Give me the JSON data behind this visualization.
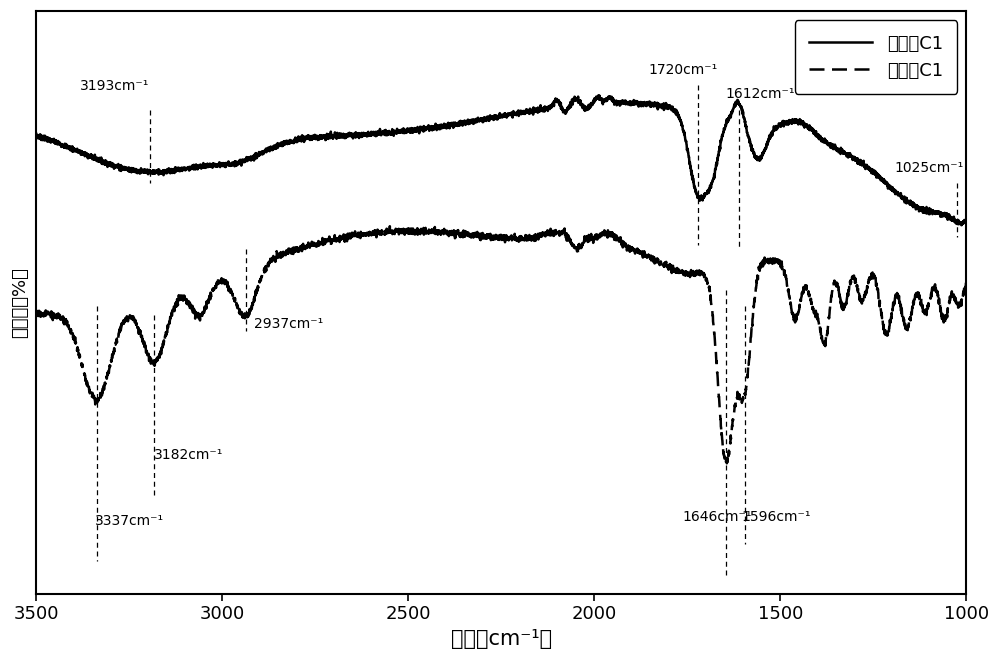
{
  "title": "",
  "xlabel": "波数（cm⁻¹）",
  "ylabel": "透过率（%）",
  "xlim": [
    3500,
    1000
  ],
  "legend_solid": "改性前C1",
  "legend_dashed": "改性后C1",
  "background_color": "#ffffff",
  "annotation_labels": [
    "3193cm⁻¹",
    "3337cm⁻¹",
    "3182cm⁻¹",
    "2937cm⁻¹",
    "1720cm⁻¹",
    "1612cm⁻¹",
    "1646cm⁻¹",
    "1596cm⁻¹",
    "1025cm⁻¹"
  ]
}
